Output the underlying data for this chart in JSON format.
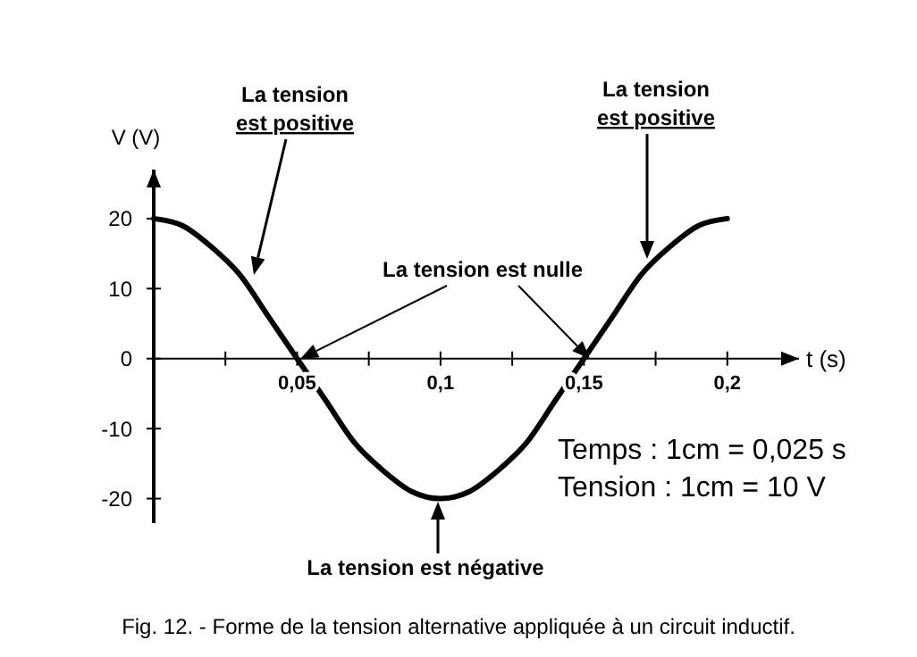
{
  "chart_data": {
    "type": "line",
    "title": "Fig. 12. - Forme de la tension alternative appliquée à un circuit inductif.",
    "xlabel": "t (s)",
    "ylabel": "V (V)",
    "x": [
      0,
      0.01,
      0.02,
      0.03,
      0.04,
      0.05,
      0.06,
      0.07,
      0.08,
      0.09,
      0.1,
      0.11,
      0.12,
      0.13,
      0.14,
      0.15,
      0.16,
      0.17,
      0.18,
      0.19,
      0.2
    ],
    "series": [
      {
        "color": "#000000",
        "values": [
          20,
          19,
          16,
          12,
          6,
          0,
          -6,
          -12,
          -16,
          -19,
          -20,
          -19,
          -16,
          -12,
          -6,
          0,
          6,
          12,
          16,
          19,
          20
        ]
      }
    ],
    "xlim": [
      0,
      0.225
    ],
    "ylim": [
      -23.5,
      27
    ],
    "xticks": [
      {
        "value": 0.025,
        "label": null
      },
      {
        "value": 0.05,
        "label": "0,05"
      },
      {
        "value": 0.075,
        "label": null
      },
      {
        "value": 0.1,
        "label": "0,1"
      },
      {
        "value": 0.125,
        "label": null
      },
      {
        "value": 0.15,
        "label": "0,15"
      },
      {
        "value": 0.175,
        "label": null
      },
      {
        "value": 0.2,
        "label": "0,2"
      }
    ],
    "yticks": [
      -20,
      -10,
      0,
      10,
      20
    ],
    "grid": false,
    "marker": "none",
    "line_style": "solid",
    "annotations": [
      "La tension\nest positive",
      "La tension\nest positive",
      "La tension est nulle",
      "La tension est négative",
      "Temps : 1cm = 0,025 s",
      "Tension : 1cm = 10 V"
    ]
  }
}
